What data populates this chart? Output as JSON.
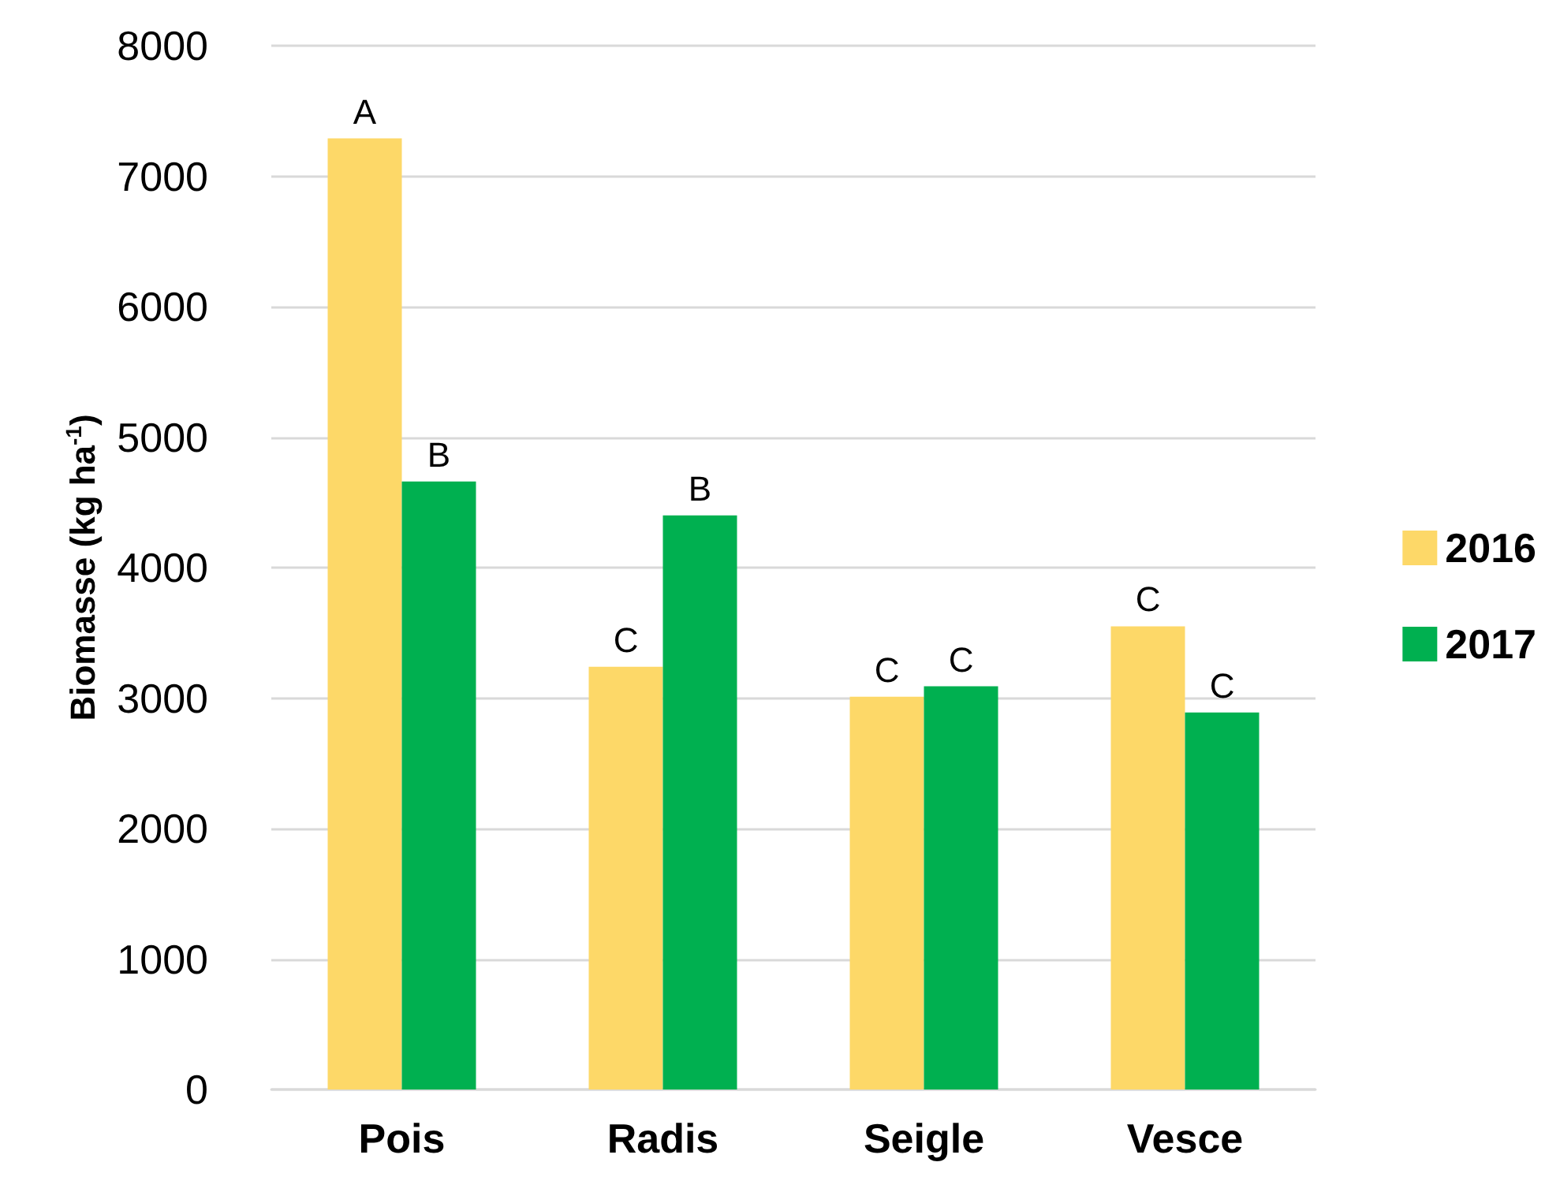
{
  "chart_data": {
    "type": "bar",
    "ylabel": "Biomasse (kg ha$^{-1}$)",
    "categories": [
      "Pois",
      "Radis",
      "Seigle",
      "Vesce"
    ],
    "series": [
      {
        "name": "2016",
        "color": "#fdd868",
        "values": [
          7290,
          3240,
          3010,
          3550
        ],
        "value_labels": [
          "A",
          "C",
          "C",
          "C"
        ]
      },
      {
        "name": "2017",
        "color": "#00b050",
        "values": [
          4660,
          4400,
          3090,
          2890
        ],
        "value_labels": [
          "B",
          "B",
          "C",
          "C"
        ]
      }
    ],
    "ylim": [
      0,
      8000
    ],
    "yticks": [
      0,
      1000,
      2000,
      3000,
      4000,
      5000,
      6000,
      7000,
      8000
    ],
    "grid": "y",
    "legend": "right"
  }
}
